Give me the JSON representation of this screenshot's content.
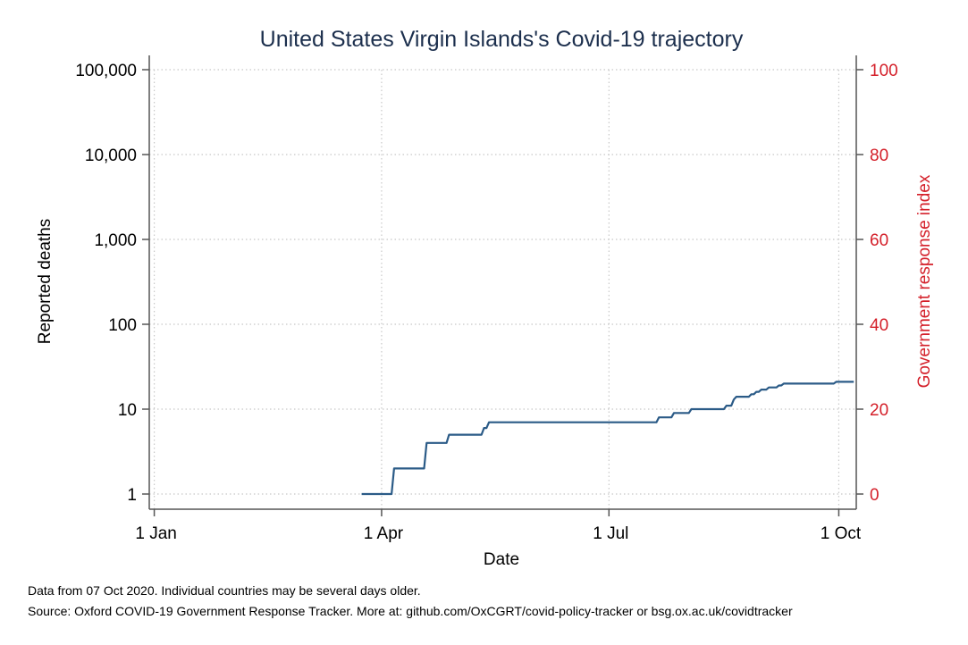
{
  "chart_data": {
    "type": "line",
    "title": "United States Virgin Islands's Covid-19 trajectory",
    "xlabel": "Date",
    "ylabel": "Reported deaths",
    "y2label": "Government response index",
    "y_scale": "log",
    "ylim": [
      1,
      100000
    ],
    "y_ticks": [
      1,
      10,
      100,
      1000,
      10000,
      100000
    ],
    "y_tick_labels": [
      "1",
      "10",
      "100",
      "1,000",
      "10,000",
      "100,000"
    ],
    "y2lim": [
      0,
      100
    ],
    "y2_ticks": [
      0,
      20,
      40,
      60,
      80,
      100
    ],
    "y2_tick_labels": [
      "0",
      "20",
      "40",
      "60",
      "80",
      "100"
    ],
    "xlim": [
      "2019-12-30",
      "2020-10-08"
    ],
    "x_ticks": [
      "2020-01-01",
      "2020-04-01",
      "2020-07-01",
      "2020-10-01"
    ],
    "x_tick_labels": [
      "1 Jan",
      "1 Apr",
      "1 Jul",
      "1 Oct"
    ],
    "grid": true,
    "series": [
      {
        "name": "",
        "color": "#2b5b87",
        "points": [
          [
            "2020-03-24",
            1
          ],
          [
            "2020-04-05",
            1
          ],
          [
            "2020-04-06",
            2
          ],
          [
            "2020-04-18",
            2
          ],
          [
            "2020-04-19",
            4
          ],
          [
            "2020-04-27",
            4
          ],
          [
            "2020-04-28",
            5
          ],
          [
            "2020-05-11",
            5
          ],
          [
            "2020-05-12",
            6
          ],
          [
            "2020-05-13",
            6
          ],
          [
            "2020-05-14",
            7
          ],
          [
            "2020-07-20",
            7
          ],
          [
            "2020-07-21",
            8
          ],
          [
            "2020-07-26",
            8
          ],
          [
            "2020-07-27",
            9
          ],
          [
            "2020-08-02",
            9
          ],
          [
            "2020-08-03",
            10
          ],
          [
            "2020-08-16",
            10
          ],
          [
            "2020-08-17",
            11
          ],
          [
            "2020-08-19",
            11
          ],
          [
            "2020-08-20",
            13
          ],
          [
            "2020-08-21",
            14
          ],
          [
            "2020-08-26",
            14
          ],
          [
            "2020-08-27",
            15
          ],
          [
            "2020-08-28",
            15
          ],
          [
            "2020-08-29",
            16
          ],
          [
            "2020-08-30",
            16
          ],
          [
            "2020-08-31",
            17
          ],
          [
            "2020-09-02",
            17
          ],
          [
            "2020-09-03",
            18
          ],
          [
            "2020-09-06",
            18
          ],
          [
            "2020-09-07",
            19
          ],
          [
            "2020-09-08",
            19
          ],
          [
            "2020-09-09",
            20
          ],
          [
            "2020-09-29",
            20
          ],
          [
            "2020-09-30",
            21
          ],
          [
            "2020-10-07",
            21
          ]
        ]
      }
    ]
  },
  "footnote": {
    "line1": "Data from 07 Oct 2020. Individual countries may be several days older.",
    "line2": "Source: Oxford COVID-19 Government Response Tracker. More at: github.com/OxCGRT/covid-policy-tracker or bsg.ox.ac.uk/covidtracker"
  },
  "colors": {
    "title": "#1c2f4d",
    "series": "#2b5b87",
    "right_axis": "#d4202a",
    "grid": "#c8c8c8"
  }
}
